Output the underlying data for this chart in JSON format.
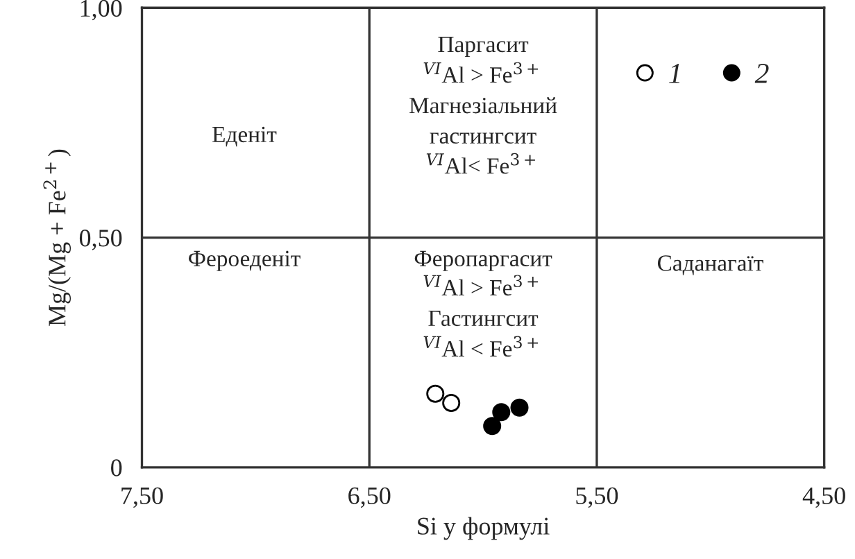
{
  "chart_data": {
    "type": "scatter",
    "xlabel": "Si у формулі",
    "ylabel": "Mg/(Mg + Fe$^{2+}$)",
    "xlim": [
      7.5,
      4.5
    ],
    "ylim": [
      0,
      1
    ],
    "xticks": [
      {
        "value": 7.5,
        "label": "7,50"
      },
      {
        "value": 6.5,
        "label": "6,50"
      },
      {
        "value": 5.5,
        "label": "5,50"
      },
      {
        "value": 4.5,
        "label": "4,50"
      }
    ],
    "yticks": [
      {
        "value": 0,
        "label": "0"
      },
      {
        "value": 0.5,
        "label": "0,50"
      },
      {
        "value": 1,
        "label": "1,00"
      }
    ],
    "series": [
      {
        "name": "1",
        "color": "#ffffff",
        "x": [
          6.21,
          6.14
        ],
        "values": [
          0.16,
          0.14
        ]
      },
      {
        "name": "2",
        "color": "#000000",
        "x": [
          5.96,
          5.92,
          5.84
        ],
        "values": [
          0.09,
          0.12,
          0.13
        ]
      }
    ],
    "marker": "circle",
    "legend": "top right",
    "ref_lines": [
      {
        "axis": "x",
        "value": 6.5,
        "label": null
      },
      {
        "axis": "x",
        "value": 5.5,
        "label": null
      },
      {
        "axis": "y",
        "value": 0.5,
        "label": null
      }
    ],
    "annotations": [
      "Еденіт",
      "Паргасит",
      "$^{VI}$Al > Fe$^{3+}$",
      "Магнезіальний",
      "гастингсит",
      "$^{VI}$Al< Fe$^{3+}$",
      "Фероеденіт",
      "Феропаргасит",
      "$^{VI}$Al > Fe$^{3+}$",
      "Гастингсит",
      "$^{VI}$Al < Fe$^{3+}$",
      "Саданагаїт"
    ]
  }
}
